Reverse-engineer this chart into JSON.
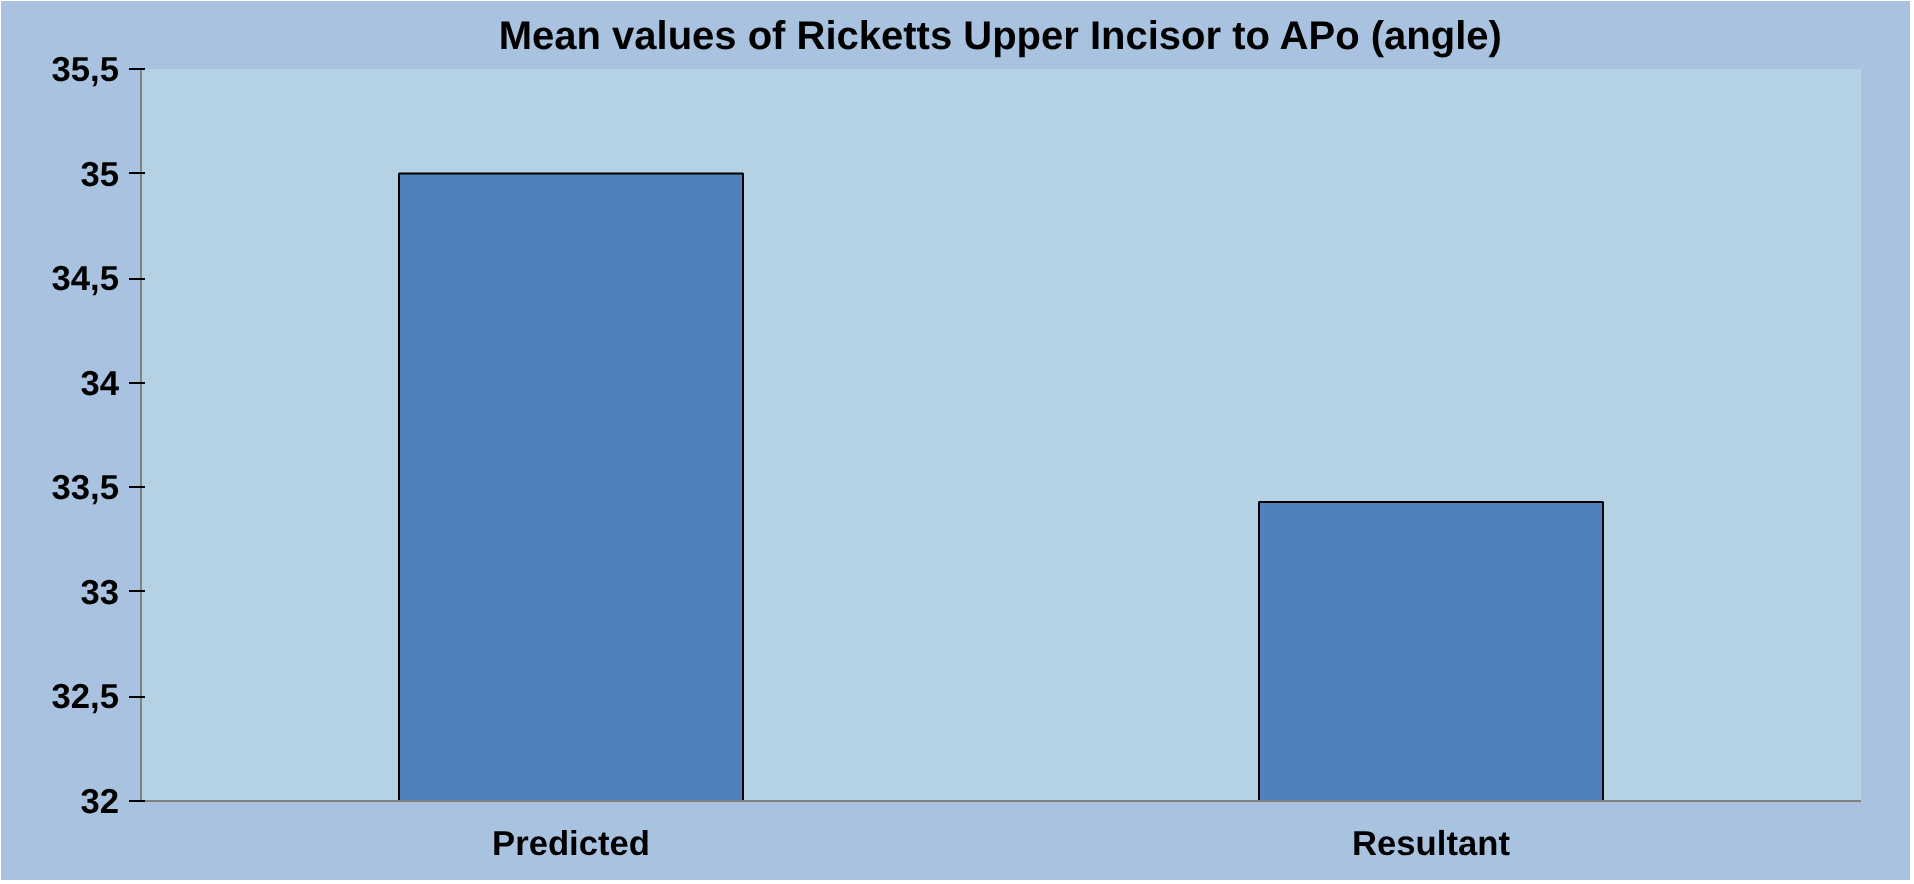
{
  "chart_data": {
    "type": "bar",
    "title": "Mean values of Ricketts Upper Incisor to APo (angle)",
    "categories": [
      "Predicted",
      "Resultant"
    ],
    "values": [
      35.0,
      33.43
    ],
    "color": "#4f81bd",
    "ylim": [
      32,
      35.5
    ],
    "yticks": [
      32,
      {
        "value": 32.5,
        "label": "32,5"
      },
      33,
      {
        "value": 33.5,
        "label": "33,5"
      },
      34,
      {
        "value": 34.5,
        "label": "34,5"
      },
      35,
      {
        "value": 35.5,
        "label": "35,5"
      }
    ],
    "grid": false
  }
}
